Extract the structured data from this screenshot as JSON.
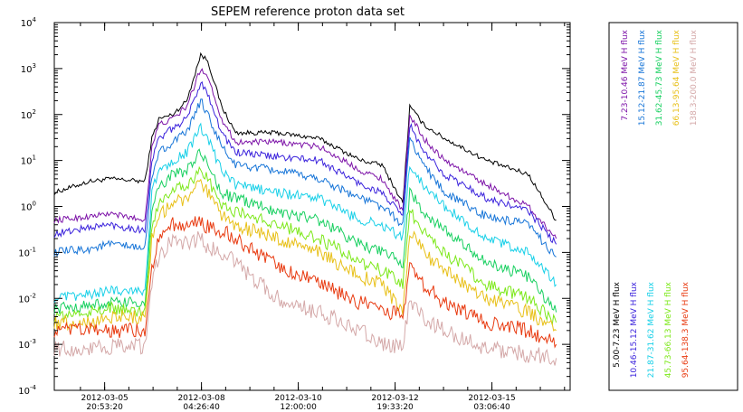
{
  "chart_data": {
    "type": "line",
    "title": "SEPEM reference proton data set",
    "xlabel": "",
    "ylabel": "",
    "y_scale": "log",
    "ylim": [
      0.0001,
      10000
    ],
    "y_ticks": [
      {
        "value": 0.0001,
        "base": "10",
        "exp": "-4"
      },
      {
        "value": 0.001,
        "base": "10",
        "exp": "-3"
      },
      {
        "value": 0.01,
        "base": "10",
        "exp": "-2"
      },
      {
        "value": 0.1,
        "base": "10",
        "exp": "-1"
      },
      {
        "value": 1,
        "base": "10",
        "exp": "0"
      },
      {
        "value": 10,
        "base": "10",
        "exp": "1"
      },
      {
        "value": 100,
        "base": "10",
        "exp": "2"
      },
      {
        "value": 1000,
        "base": "10",
        "exp": "3"
      },
      {
        "value": 10000,
        "base": "10",
        "exp": "4"
      }
    ],
    "x_ticks": [
      {
        "date": "2012-03-05",
        "time": "20:53:20"
      },
      {
        "date": "2012-03-08",
        "time": "04:26:40"
      },
      {
        "date": "2012-03-10",
        "time": "12:00:00"
      },
      {
        "date": "2012-03-12",
        "time": "19:33:20"
      },
      {
        "date": "2012-03-15",
        "time": "03:06:40"
      }
    ],
    "xlim": [
      "2012-03-04T16:00:00",
      "2012-03-17T00:00:00"
    ],
    "x": [
      "2012-03-04T16:00:00",
      "2012-03-05T12:00:00",
      "2012-03-06T00:00:00",
      "2012-03-06T20:00:00",
      "2012-03-07T00:00:00",
      "2012-03-07T04:00:00",
      "2012-03-07T12:00:00",
      "2012-03-07T20:00:00",
      "2012-03-08T04:00:00",
      "2012-03-08T08:00:00",
      "2012-03-08T16:00:00",
      "2012-03-09T00:00:00",
      "2012-03-10T00:00:00",
      "2012-03-11T00:00:00",
      "2012-03-12T00:00:00",
      "2012-03-12T12:00:00",
      "2012-03-13T00:00:00",
      "2012-03-13T04:00:00",
      "2012-03-13T12:00:00",
      "2012-03-14T00:00:00",
      "2012-03-15T00:00:00",
      "2012-03-16T00:00:00",
      "2012-03-16T16:00:00"
    ],
    "legend_top_labels": [
      "7.23-10.46 MeV H flux",
      "15.12-21.87 MeV H flux",
      "31.62-45.73 MeV H flux",
      "66.13-95.64 MeV H flux",
      "138.3-200.0 MeV H flux"
    ],
    "legend_bottom_labels": [
      "5.00-7.23 MeV H flux",
      "10.46-15.12 MeV H flux",
      "21.87-31.62 MeV H flux",
      "45.73-66.13 MeV H flux",
      "95.64-138.3 MeV H flux"
    ],
    "series": [
      {
        "name": "5.00-7.23 MeV H flux",
        "color": "#000000",
        "values": [
          2.0,
          3.5,
          4.0,
          3.5,
          30,
          80,
          100,
          200,
          2000,
          1500,
          150,
          40,
          40,
          30,
          10,
          8,
          1.2,
          150,
          60,
          30,
          10,
          5,
          0.5
        ]
      },
      {
        "name": "7.23-10.46 MeV H flux",
        "color": "#7d13a8",
        "values": [
          0.5,
          0.6,
          0.7,
          0.5,
          20,
          60,
          80,
          150,
          1000,
          700,
          80,
          25,
          25,
          20,
          6,
          4,
          0.8,
          100,
          30,
          10,
          3,
          1,
          0.2
        ]
      },
      {
        "name": "10.46-15.12 MeV H flux",
        "color": "#3a22dc",
        "values": [
          0.25,
          0.35,
          0.4,
          0.3,
          10,
          30,
          50,
          80,
          500,
          300,
          40,
          15,
          12,
          10,
          3,
          2,
          0.6,
          60,
          15,
          5,
          1.5,
          0.8,
          0.15
        ]
      },
      {
        "name": "15.12-21.87 MeV H flux",
        "color": "#1775d8",
        "values": [
          0.1,
          0.12,
          0.15,
          0.12,
          5,
          15,
          25,
          40,
          200,
          100,
          20,
          8,
          6,
          4,
          1.5,
          1,
          0.4,
          30,
          8,
          2,
          0.6,
          0.4,
          0.08
        ]
      },
      {
        "name": "21.87-31.62 MeV H flux",
        "color": "#18d0e8",
        "values": [
          0.01,
          0.012,
          0.015,
          0.015,
          2,
          6,
          10,
          15,
          50,
          30,
          6,
          3,
          2,
          1.5,
          0.5,
          0.4,
          0.2,
          8,
          3,
          1,
          0.2,
          0.1,
          0.02
        ]
      },
      {
        "name": "31.62-45.73 MeV H flux",
        "color": "#18d060",
        "values": [
          0.006,
          0.007,
          0.008,
          0.008,
          0.8,
          2.5,
          5,
          6,
          15,
          8,
          2,
          1.5,
          0.8,
          0.5,
          0.15,
          0.1,
          0.06,
          2,
          0.8,
          0.3,
          0.06,
          0.03,
          0.005
        ]
      },
      {
        "name": "45.73-66.13 MeV H flux",
        "color": "#7de81a",
        "values": [
          0.004,
          0.005,
          0.006,
          0.005,
          0.4,
          1.2,
          2.5,
          3,
          6,
          4,
          1,
          0.8,
          0.4,
          0.2,
          0.06,
          0.04,
          0.02,
          0.8,
          0.3,
          0.1,
          0.02,
          0.01,
          0.003
        ]
      },
      {
        "name": "66.13-95.64 MeV H flux",
        "color": "#e8c018",
        "values": [
          0.003,
          0.003,
          0.004,
          0.004,
          0.2,
          0.6,
          1.2,
          1.5,
          3,
          2,
          0.6,
          0.4,
          0.2,
          0.1,
          0.03,
          0.02,
          0.005,
          0.3,
          0.1,
          0.04,
          0.01,
          0.005,
          0.002
        ]
      },
      {
        "name": "95.64-138.3 MeV H flux",
        "color": "#e83a10",
        "values": [
          0.002,
          0.002,
          0.002,
          0.002,
          0.05,
          0.2,
          0.4,
          0.4,
          0.5,
          0.35,
          0.3,
          0.2,
          0.05,
          0.02,
          0.008,
          0.006,
          0.004,
          0.05,
          0.02,
          0.008,
          0.003,
          0.002,
          0.001
        ]
      },
      {
        "name": "138.3-200.0 MeV H flux",
        "color": "#d4a8a8",
        "values": [
          0.0008,
          0.0008,
          0.0009,
          0.0009,
          0.02,
          0.08,
          0.2,
          0.15,
          0.2,
          0.12,
          0.1,
          0.06,
          0.01,
          0.005,
          0.002,
          0.001,
          0.0008,
          0.01,
          0.004,
          0.002,
          0.0008,
          0.0006,
          0.0005
        ]
      }
    ],
    "grid": false,
    "legend_position": "right"
  }
}
